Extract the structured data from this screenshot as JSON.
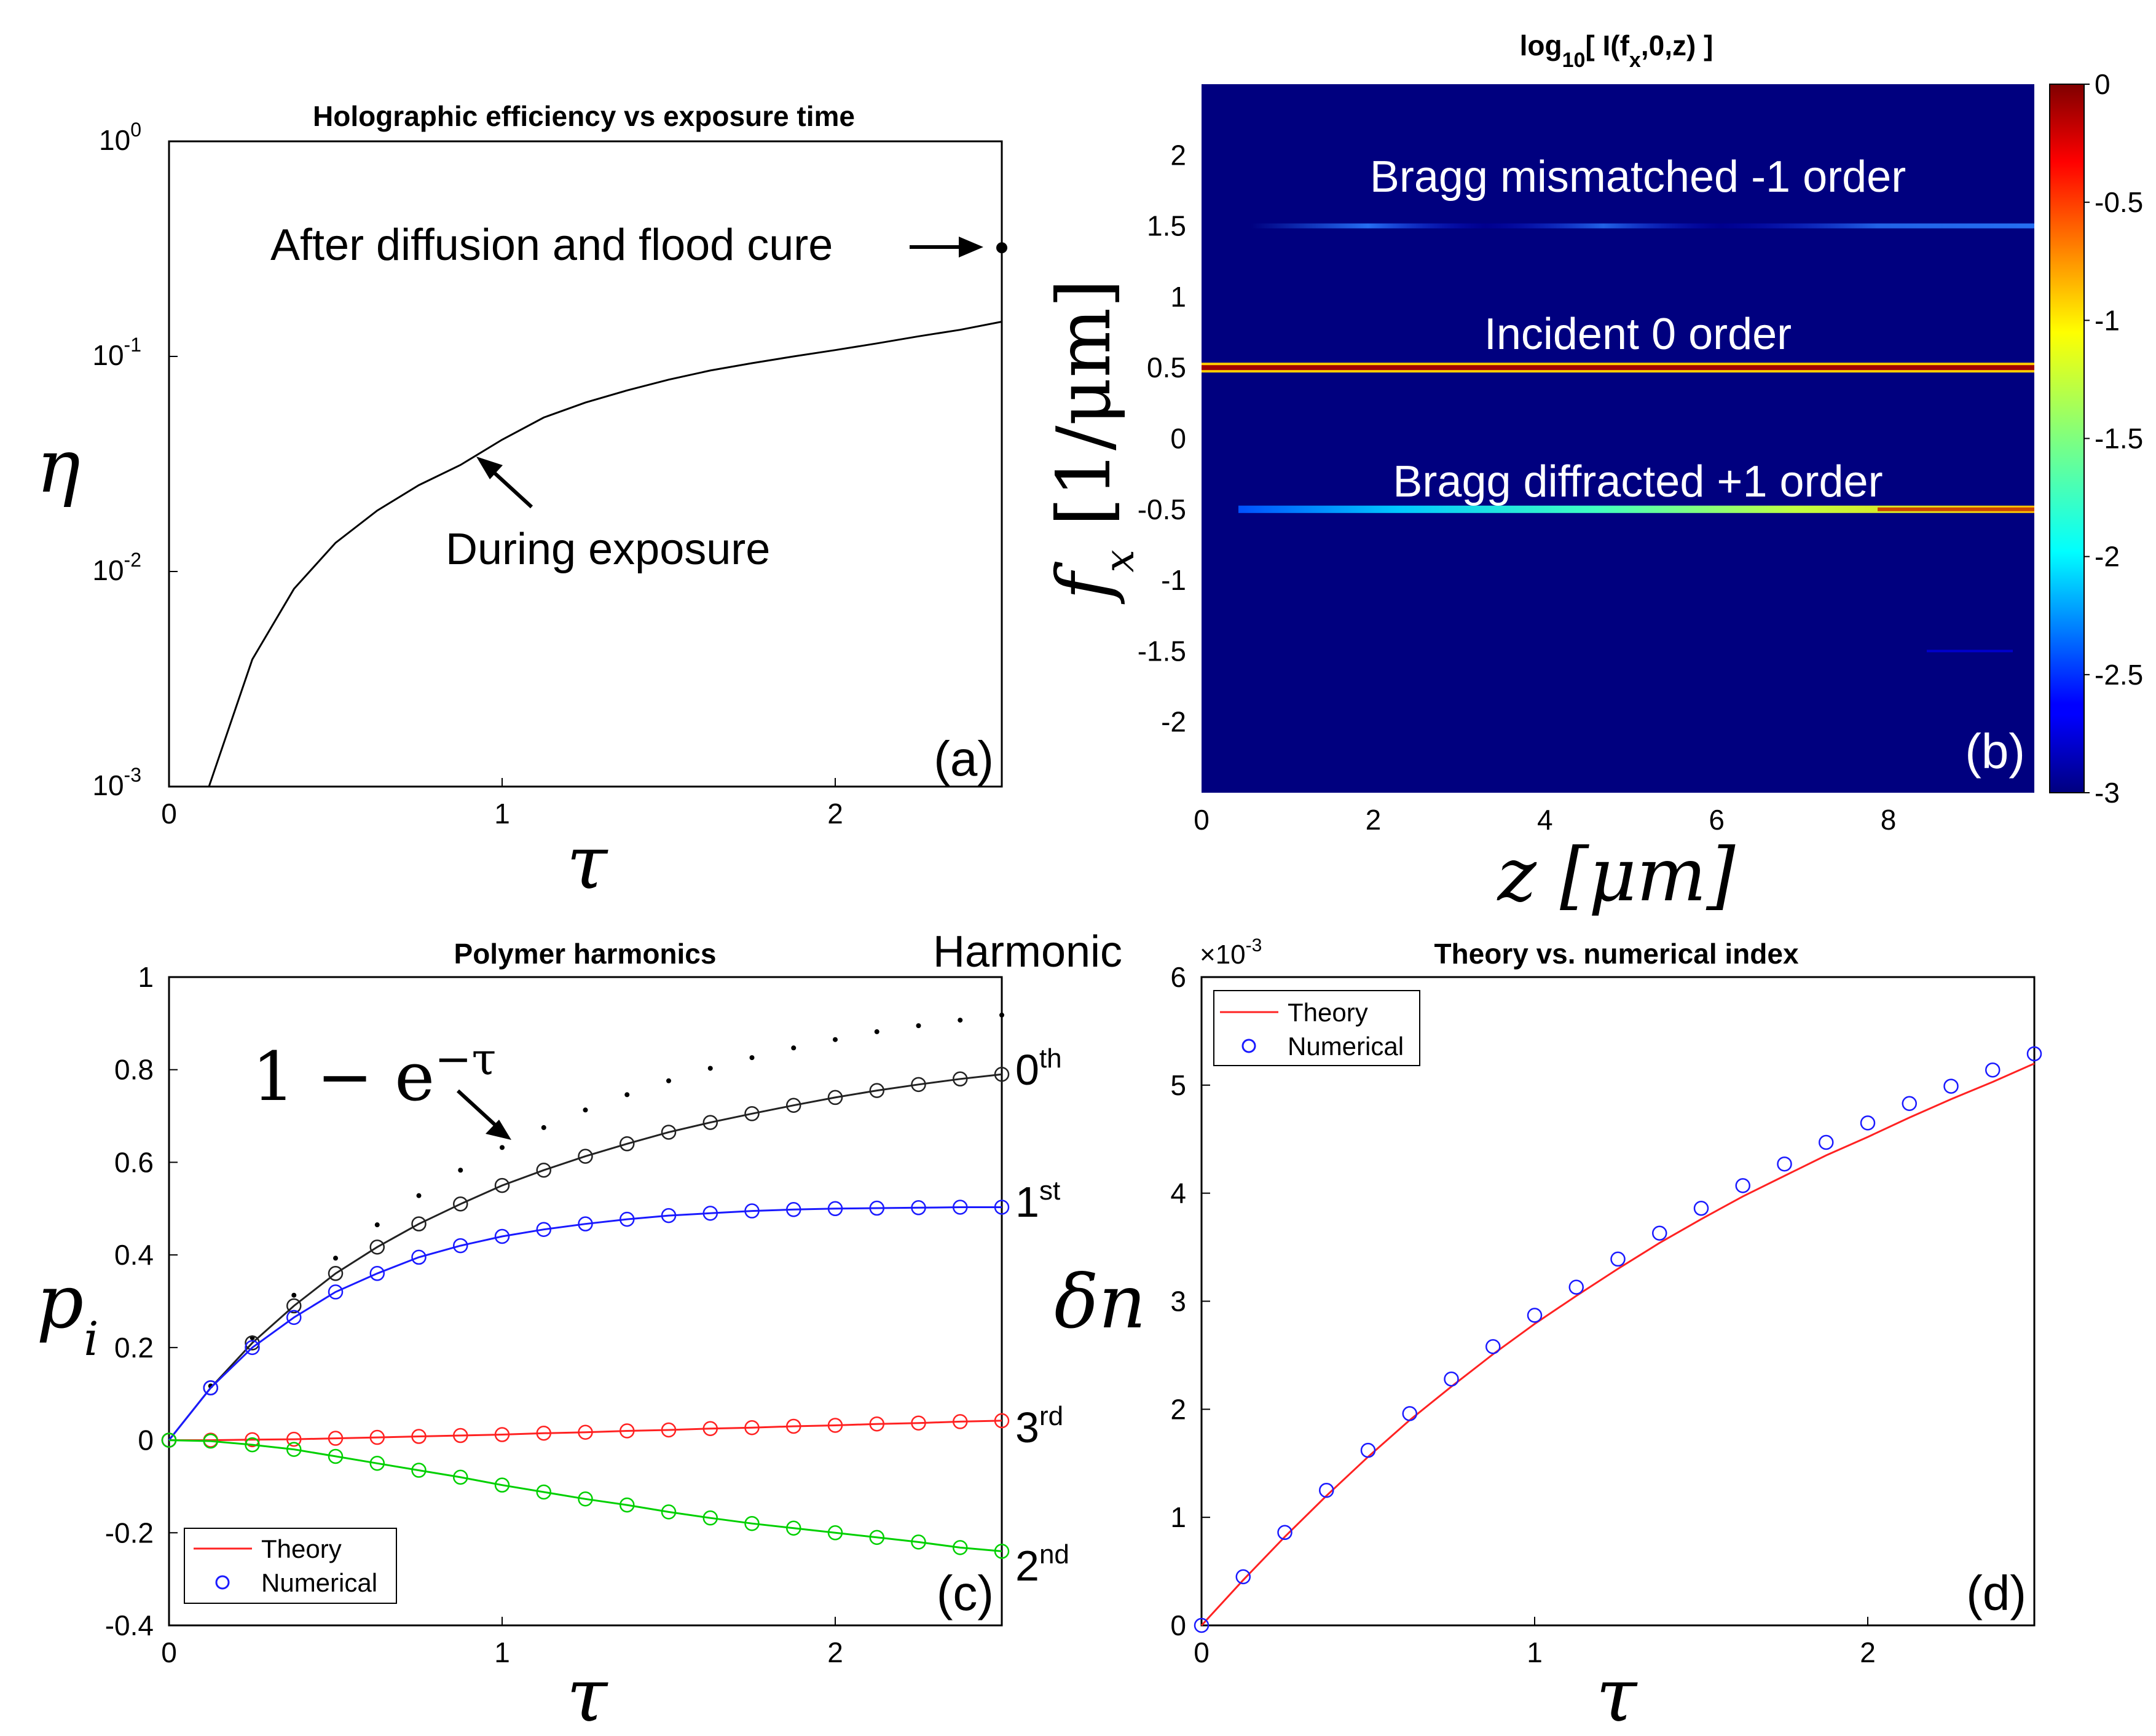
{
  "chart_data": [
    {
      "id": "a",
      "type": "line",
      "title": "Holographic efficiency vs exposure time",
      "xlabel": "τ",
      "ylabel": "η",
      "panel_label": "(a)",
      "xlim": [
        0,
        2.5
      ],
      "ylim": [
        0.001,
        1
      ],
      "yscale": "log",
      "xticks": [
        "0",
        "1",
        "2"
      ],
      "yticks": [
        {
          "base": "10",
          "exp": "0"
        },
        {
          "base": "10",
          "exp": "-1"
        },
        {
          "base": "10",
          "exp": "-2"
        },
        {
          "base": "10",
          "exp": "-3"
        }
      ],
      "series": [
        {
          "x": [
            0.12,
            0.25,
            0.375,
            0.5,
            0.625,
            0.75,
            0.875,
            1.0,
            1.125,
            1.25,
            1.375,
            1.5,
            1.625,
            1.75,
            1.875,
            2.0,
            2.125,
            2.25,
            2.375,
            2.5
          ],
          "y": [
            0.001,
            0.0039,
            0.0083,
            0.0136,
            0.0192,
            0.0252,
            0.0313,
            0.041,
            0.052,
            0.061,
            0.0695,
            0.078,
            0.086,
            0.093,
            0.1,
            0.107,
            0.115,
            0.124,
            0.133,
            0.145
          ]
        }
      ],
      "point": {
        "x": 2.5,
        "y": 0.32
      },
      "annotations": [
        "After diffusion and flood cure",
        "During exposure"
      ]
    },
    {
      "id": "b",
      "type": "heatmap",
      "title_parts": {
        "pre": "log",
        "sub1": "10",
        "mid": "[ I(f",
        "sub2": "x",
        "post": ",0,z) ]"
      },
      "xlabel": "z [μm]",
      "ylabel_main": "f",
      "ylabel_sub": "x",
      "ylabel_rest": " [1/μm]",
      "panel_label": "(b)",
      "xlim": [
        0,
        9.7
      ],
      "ylim": [
        -2.5,
        2.5
      ],
      "xticks": [
        "0",
        "2",
        "4",
        "6",
        "8"
      ],
      "yticks": [
        "2",
        "1.5",
        "1",
        "0.5",
        "0",
        "-0.5",
        "-1",
        "-1.5",
        "-2"
      ],
      "colorbar_ticks": [
        "0",
        "-0.5",
        "-1",
        "-1.5",
        "-2",
        "-2.5",
        "-3"
      ],
      "clim": [
        -3,
        0
      ],
      "bands": [
        {
          "fx": 1.5,
          "level": -2.5
        },
        {
          "fx": 0.5,
          "level": 0
        },
        {
          "fx": -0.5,
          "level": -1.0
        }
      ],
      "labels": [
        "Bragg mismatched -1 order",
        "Incident 0 order",
        "Bragg diffracted +1 order"
      ]
    },
    {
      "id": "c",
      "type": "line",
      "title": "Polymer harmonics",
      "xlabel": "τ",
      "ylabel_main": "p",
      "ylabel_sub": "i",
      "panel_label": "(c)",
      "xlim": [
        0,
        2.5
      ],
      "ylim": [
        -0.4,
        1
      ],
      "xticks": [
        "0",
        "1",
        "2"
      ],
      "yticks": [
        "1",
        "0.8",
        "0.6",
        "0.4",
        "0.2",
        "0",
        "-0.2",
        "-0.4"
      ],
      "legend": {
        "theory": "Theory",
        "numerical": "Numerical",
        "position": "bottom-left"
      },
      "header": "Harmonic",
      "curve_label": "1 − e",
      "curve_label_sup": "−τ",
      "harmonic_labels": [
        {
          "num": "0",
          "sup": "th"
        },
        {
          "num": "1",
          "sup": "st"
        },
        {
          "num": "3",
          "sup": "rd"
        },
        {
          "num": "2",
          "sup": "nd"
        }
      ],
      "x": [
        0,
        0.125,
        0.25,
        0.375,
        0.5,
        0.625,
        0.75,
        0.875,
        1.0,
        1.125,
        1.25,
        1.375,
        1.5,
        1.625,
        1.75,
        1.875,
        2.0,
        2.125,
        2.25,
        2.375,
        2.5
      ],
      "series": [
        {
          "color": "#222222",
          "values": [
            0,
            0.113,
            0.21,
            0.29,
            0.36,
            0.417,
            0.467,
            0.51,
            0.55,
            0.583,
            0.613,
            0.64,
            0.665,
            0.686,
            0.705,
            0.723,
            0.74,
            0.755,
            0.768,
            0.78,
            0.79
          ]
        },
        {
          "color": "#1a1aff",
          "values": [
            0,
            0.113,
            0.2,
            0.265,
            0.32,
            0.36,
            0.395,
            0.42,
            0.44,
            0.455,
            0.467,
            0.477,
            0.485,
            0.49,
            0.495,
            0.498,
            0.5,
            0.501,
            0.502,
            0.503,
            0.503
          ]
        },
        {
          "color": "#ff2222",
          "values": [
            0,
            0.0,
            0.001,
            0.002,
            0.004,
            0.006,
            0.008,
            0.01,
            0.012,
            0.015,
            0.017,
            0.02,
            0.022,
            0.025,
            0.027,
            0.03,
            0.032,
            0.035,
            0.037,
            0.04,
            0.042
          ]
        },
        {
          "color": "#00d000",
          "values": [
            0,
            -0.002,
            -0.01,
            -0.02,
            -0.035,
            -0.05,
            -0.065,
            -0.08,
            -0.097,
            -0.112,
            -0.127,
            -0.14,
            -0.155,
            -0.168,
            -0.18,
            -0.19,
            -0.2,
            -0.21,
            -0.22,
            -0.232,
            -0.24
          ]
        }
      ],
      "dotted": [
        0.117,
        0.221,
        0.313,
        0.393,
        0.465,
        0.528,
        0.583,
        0.632,
        0.675,
        0.713,
        0.746,
        0.776,
        0.803,
        0.826,
        0.847,
        0.865,
        0.882,
        0.895,
        0.907,
        0.918
      ]
    },
    {
      "id": "d",
      "type": "line",
      "title": "Theory vs. numerical index",
      "xlabel": "τ",
      "ylabel": "δn",
      "panel_label": "(d)",
      "xlim": [
        0,
        2.5
      ],
      "ylim": [
        0,
        6
      ],
      "y_multiplier": "×10",
      "y_multiplier_exp": "-3",
      "xticks": [
        "0",
        "1",
        "2"
      ],
      "yticks": [
        "6",
        "5",
        "4",
        "3",
        "2",
        "1",
        "0"
      ],
      "legend": {
        "theory": "Theory",
        "numerical": "Numerical",
        "position": "top-left"
      },
      "x": [
        0,
        0.125,
        0.25,
        0.375,
        0.5,
        0.625,
        0.75,
        0.875,
        1.0,
        1.125,
        1.25,
        1.375,
        1.5,
        1.625,
        1.75,
        1.875,
        2.0,
        2.125,
        2.25,
        2.375,
        2.5
      ],
      "theory": [
        0,
        0.42,
        0.82,
        1.2,
        1.56,
        1.9,
        2.21,
        2.51,
        2.79,
        3.05,
        3.3,
        3.54,
        3.76,
        3.97,
        4.16,
        4.35,
        4.52,
        4.7,
        4.87,
        5.03,
        5.2
      ],
      "numerical": [
        0,
        0.45,
        0.86,
        1.25,
        1.62,
        1.96,
        2.28,
        2.58,
        2.87,
        3.13,
        3.39,
        3.63,
        3.86,
        4.07,
        4.27,
        4.47,
        4.65,
        4.83,
        4.99,
        5.14,
        5.29
      ]
    }
  ]
}
